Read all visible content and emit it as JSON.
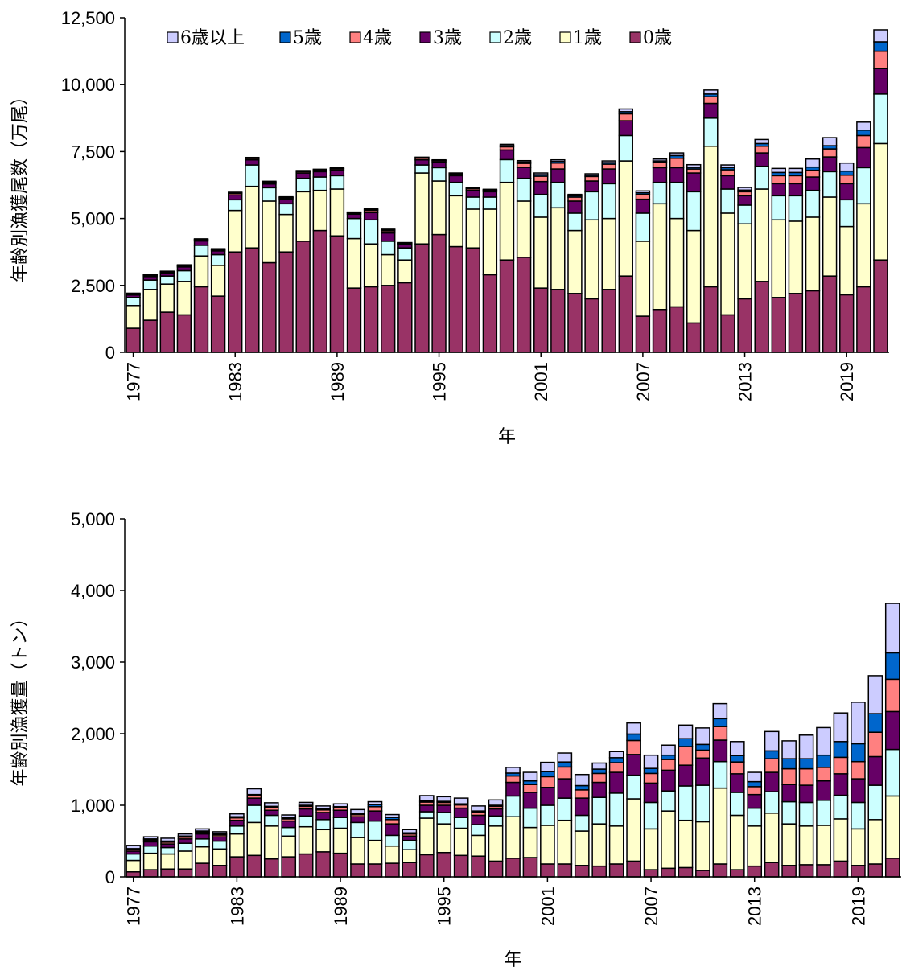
{
  "colors": {
    "age0": "#993366",
    "age1": "#FFFFCC",
    "age2": "#CCFFFF",
    "age3": "#660066",
    "age4": "#FF8080",
    "age5": "#0066CC",
    "age6p": "#CCCCFF"
  },
  "chart_data": [
    {
      "type": "bar",
      "stacked": true,
      "ylabel": "年齢別漁獲尾数（万尾）",
      "xlabel": "年",
      "ylim": [
        0,
        12500
      ],
      "yticks": [
        0,
        2500,
        5000,
        7500,
        10000,
        12500
      ],
      "ytick_labels": [
        "0",
        "2,500",
        "5,000",
        "7,500",
        "10,000",
        "12,500"
      ],
      "xtick_labels": [
        "1977",
        "1983",
        "1989",
        "1995",
        "2001",
        "2007",
        "2013",
        "2019"
      ],
      "legend": [
        "6歳以上",
        "5歳",
        "4歳",
        "3歳",
        "2歳",
        "1歳",
        "0歳"
      ],
      "legend_position": "top",
      "categories": [
        1977,
        1978,
        1979,
        1980,
        1981,
        1982,
        1983,
        1984,
        1985,
        1986,
        1987,
        1988,
        1989,
        1990,
        1991,
        1992,
        1993,
        1994,
        1995,
        1996,
        1997,
        1998,
        1999,
        2000,
        2001,
        2002,
        2003,
        2004,
        2005,
        2006,
        2007,
        2008,
        2009,
        2010,
        2011,
        2012,
        2013,
        2014,
        2015,
        2016,
        2017,
        2018,
        2019,
        2020,
        2021
      ],
      "series": [
        {
          "name": "0歳",
          "values": [
            900,
            1200,
            1500,
            1400,
            2450,
            2100,
            3750,
            3900,
            3350,
            3750,
            4150,
            4550,
            4350,
            2400,
            2450,
            2500,
            2600,
            4050,
            4400,
            3950,
            3900,
            2900,
            3450,
            3550,
            2400,
            2350,
            2200,
            2000,
            2350,
            2850,
            1350,
            1600,
            1700,
            1100,
            2450,
            1400,
            2000,
            2650,
            2050,
            2200,
            2300,
            2850,
            2150,
            2450,
            3450
          ]
        },
        {
          "name": "1歳",
          "values": [
            850,
            1150,
            1050,
            1250,
            1150,
            1150,
            1550,
            2300,
            2300,
            1400,
            1850,
            1500,
            1750,
            1850,
            1600,
            1150,
            850,
            2650,
            2000,
            1900,
            1450,
            2450,
            2900,
            2100,
            2650,
            3050,
            2350,
            2950,
            2650,
            4300,
            2800,
            3950,
            3300,
            3450,
            5250,
            3800,
            2800,
            3450,
            2900,
            2700,
            2750,
            2950,
            2550,
            3100,
            4350
          ]
        },
        {
          "name": "2歳",
          "values": [
            300,
            350,
            300,
            400,
            400,
            400,
            400,
            800,
            500,
            400,
            500,
            500,
            500,
            750,
            900,
            500,
            450,
            300,
            500,
            500,
            450,
            450,
            850,
            850,
            850,
            950,
            650,
            1050,
            1300,
            950,
            1050,
            800,
            1350,
            1450,
            1050,
            900,
            700,
            850,
            900,
            950,
            1000,
            950,
            1000,
            1350,
            1850
          ]
        },
        {
          "name": "3歳",
          "values": [
            90,
            130,
            100,
            140,
            160,
            140,
            180,
            190,
            140,
            180,
            200,
            200,
            200,
            160,
            270,
            310,
            120,
            190,
            200,
            250,
            250,
            200,
            360,
            410,
            480,
            500,
            450,
            400,
            550,
            550,
            520,
            550,
            550,
            700,
            550,
            500,
            350,
            500,
            450,
            450,
            500,
            550,
            600,
            750,
            950
          ]
        },
        {
          "name": "4歳",
          "values": [
            30,
            40,
            40,
            40,
            40,
            40,
            60,
            50,
            60,
            40,
            50,
            50,
            50,
            40,
            80,
            80,
            40,
            60,
            50,
            60,
            60,
            50,
            120,
            150,
            200,
            220,
            150,
            170,
            180,
            260,
            180,
            200,
            350,
            150,
            250,
            220,
            150,
            250,
            300,
            300,
            250,
            300,
            320,
            450,
            650
          ]
        },
        {
          "name": "5歳",
          "values": [
            20,
            20,
            20,
            20,
            20,
            20,
            20,
            20,
            20,
            20,
            20,
            20,
            20,
            20,
            40,
            40,
            20,
            20,
            20,
            20,
            20,
            20,
            40,
            50,
            60,
            60,
            50,
            50,
            60,
            80,
            60,
            50,
            100,
            60,
            100,
            80,
            60,
            100,
            120,
            120,
            120,
            120,
            150,
            200,
            350
          ]
        },
        {
          "name": "6歳以上",
          "values": [
            20,
            20,
            20,
            20,
            20,
            20,
            20,
            20,
            20,
            20,
            20,
            20,
            20,
            20,
            20,
            20,
            20,
            20,
            20,
            20,
            20,
            20,
            50,
            50,
            60,
            60,
            50,
            50,
            60,
            100,
            70,
            70,
            100,
            100,
            150,
            100,
            100,
            150,
            150,
            150,
            300,
            300,
            300,
            300,
            450
          ]
        }
      ]
    },
    {
      "type": "bar",
      "stacked": true,
      "ylabel": "年齢別漁獲量（トン）",
      "xlabel": "年",
      "ylim": [
        0,
        5000
      ],
      "yticks": [
        0,
        1000,
        2000,
        3000,
        4000,
        5000
      ],
      "ytick_labels": [
        "0",
        "1,000",
        "2,000",
        "3,000",
        "4,000",
        "5,000"
      ],
      "xtick_labels": [
        "1977",
        "1983",
        "1989",
        "1995",
        "2001",
        "2007",
        "2013",
        "2019"
      ],
      "categories": [
        1977,
        1978,
        1979,
        1980,
        1981,
        1982,
        1983,
        1984,
        1985,
        1986,
        1987,
        1988,
        1989,
        1990,
        1991,
        1992,
        1993,
        1994,
        1995,
        1996,
        1997,
        1998,
        1999,
        2000,
        2001,
        2002,
        2003,
        2004,
        2005,
        2006,
        2007,
        2008,
        2009,
        2010,
        2011,
        2012,
        2013,
        2014,
        2015,
        2016,
        2017,
        2018,
        2019,
        2020,
        2021
      ],
      "series": [
        {
          "name": "0歳",
          "values": [
            70,
            100,
            110,
            110,
            190,
            160,
            280,
            300,
            250,
            280,
            320,
            350,
            330,
            180,
            180,
            190,
            200,
            310,
            340,
            300,
            290,
            220,
            260,
            270,
            180,
            180,
            160,
            150,
            180,
            220,
            100,
            120,
            130,
            90,
            180,
            100,
            150,
            200,
            160,
            170,
            170,
            220,
            160,
            180,
            260
          ]
        },
        {
          "name": "1歳",
          "values": [
            160,
            230,
            210,
            250,
            230,
            230,
            320,
            460,
            460,
            290,
            380,
            310,
            350,
            370,
            330,
            240,
            180,
            510,
            400,
            380,
            290,
            490,
            580,
            420,
            540,
            610,
            480,
            590,
            530,
            870,
            570,
            800,
            660,
            680,
            1060,
            760,
            560,
            690,
            580,
            540,
            550,
            590,
            510,
            620,
            870
          ]
        },
        {
          "name": "2歳",
          "values": [
            90,
            100,
            90,
            110,
            110,
            110,
            110,
            240,
            150,
            120,
            150,
            140,
            150,
            210,
            270,
            150,
            130,
            90,
            160,
            150,
            150,
            140,
            290,
            270,
            280,
            310,
            220,
            370,
            460,
            330,
            370,
            280,
            480,
            510,
            370,
            320,
            250,
            300,
            310,
            330,
            350,
            330,
            370,
            480,
            650
          ]
        },
        {
          "name": "3歳",
          "values": [
            40,
            60,
            50,
            60,
            70,
            60,
            80,
            100,
            70,
            90,
            100,
            100,
            100,
            80,
            140,
            160,
            60,
            90,
            100,
            130,
            130,
            100,
            190,
            220,
            250,
            270,
            240,
            210,
            290,
            290,
            270,
            290,
            290,
            380,
            300,
            260,
            190,
            270,
            240,
            240,
            270,
            300,
            330,
            400,
            530
          ]
        },
        {
          "name": "4歳",
          "values": [
            20,
            25,
            25,
            25,
            25,
            25,
            35,
            35,
            40,
            30,
            35,
            35,
            35,
            30,
            60,
            60,
            30,
            45,
            40,
            45,
            45,
            35,
            90,
            110,
            150,
            165,
            115,
            125,
            135,
            195,
            135,
            150,
            260,
            110,
            190,
            165,
            110,
            190,
            220,
            230,
            190,
            230,
            240,
            340,
            450
          ]
        },
        {
          "name": "5歳",
          "values": [
            15,
            15,
            15,
            15,
            15,
            15,
            15,
            15,
            15,
            15,
            15,
            15,
            15,
            15,
            30,
            30,
            15,
            15,
            15,
            15,
            15,
            15,
            40,
            50,
            70,
            70,
            60,
            60,
            70,
            90,
            70,
            60,
            110,
            80,
            110,
            90,
            70,
            110,
            140,
            140,
            170,
            220,
            250,
            260,
            370
          ]
        },
        {
          "name": "6歳以上",
          "values": [
            45,
            30,
            40,
            30,
            30,
            30,
            40,
            80,
            50,
            40,
            40,
            40,
            40,
            55,
            40,
            40,
            45,
            75,
            65,
            80,
            70,
            75,
            80,
            120,
            130,
            125,
            155,
            85,
            85,
            155,
            185,
            140,
            190,
            230,
            210,
            195,
            130,
            270,
            250,
            330,
            385,
            400,
            580,
            530,
            690
          ]
        }
      ]
    }
  ]
}
